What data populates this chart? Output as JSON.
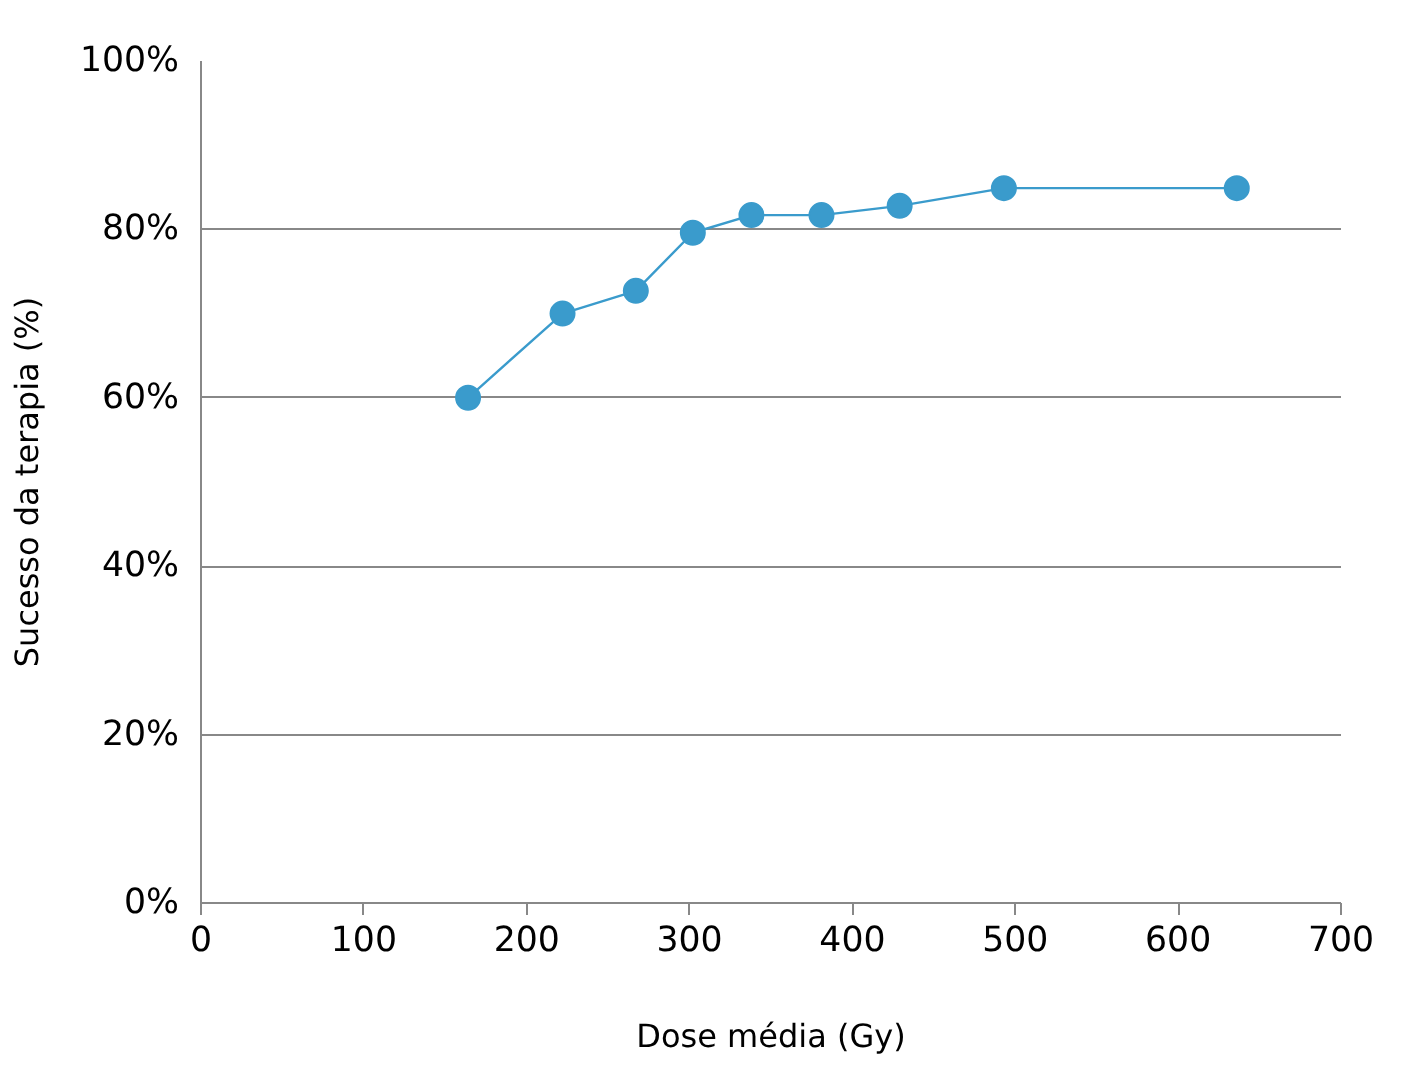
{
  "chart_data": {
    "type": "line",
    "xlabel": "Dose média (Gy)",
    "ylabel": "Sucesso da terapia (%)",
    "x": [
      164,
      222,
      267,
      302,
      338,
      381,
      429,
      493,
      636
    ],
    "series": [
      {
        "color": "#3a9bcc",
        "values": [
          60,
          70,
          72.7,
          79.6,
          81.7,
          81.7,
          82.8,
          84.9,
          84.9
        ]
      }
    ],
    "xlim": [
      0,
      700
    ],
    "xticks": [
      0,
      100,
      200,
      300,
      400,
      500,
      600,
      700
    ],
    "ylim": [
      0,
      100
    ],
    "yticks": [
      {
        "value": 0,
        "label": "0%"
      },
      {
        "value": 20,
        "label": "20%"
      },
      {
        "value": 40,
        "label": "40%"
      },
      {
        "value": 60,
        "label": "60%"
      },
      {
        "value": 80,
        "label": "80%"
      },
      {
        "value": 100,
        "label": "100%"
      }
    ],
    "grid": "y",
    "marker": "circle",
    "line_style": "solid"
  }
}
